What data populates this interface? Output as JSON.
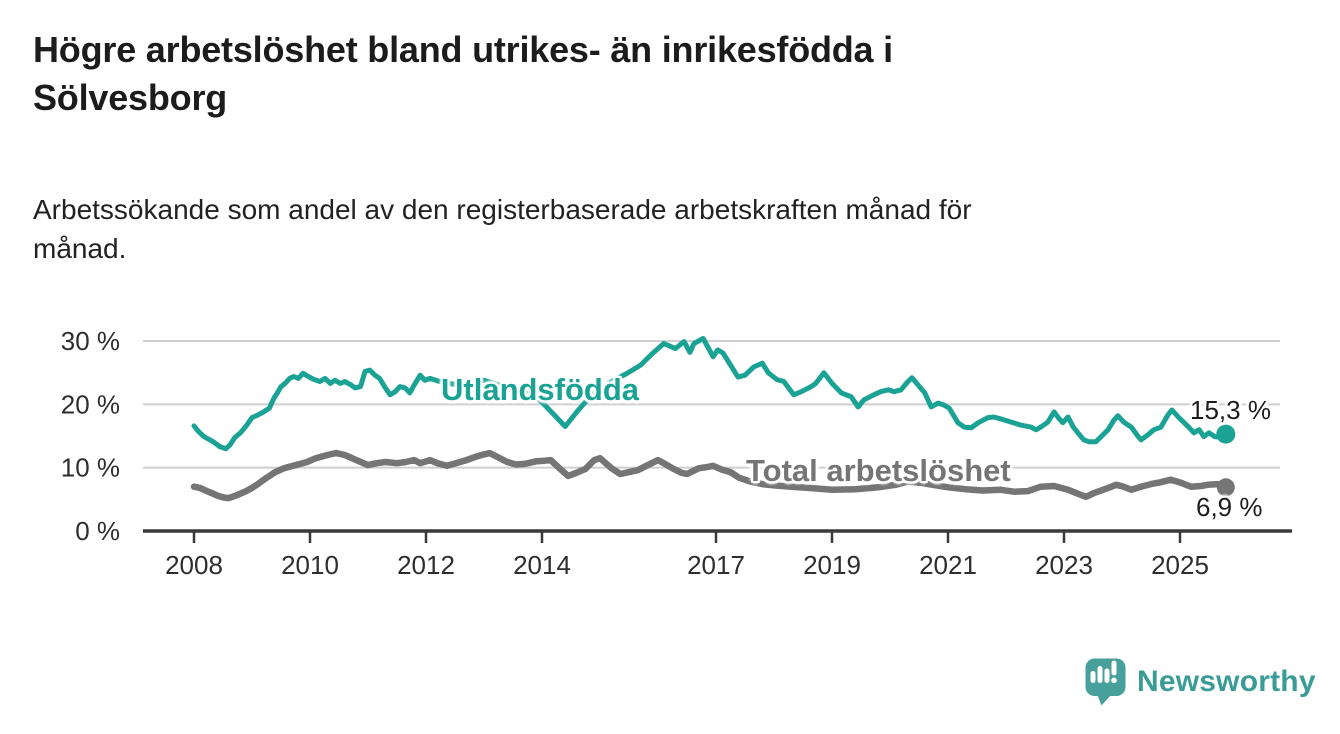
{
  "header": {
    "title_lines": [
      "Högre arbetslöshet bland utrikes- än inrikesfödda i",
      "Sölvesborg"
    ],
    "subtitle_lines": [
      "Arbetssökande som andel av den registerbaserade arbetskraften månad för",
      "månad."
    ]
  },
  "chart_data": {
    "type": "line",
    "unit": "%",
    "grid": "horizontal",
    "legend_position": "inline-labels-on-lines",
    "x_axis": {
      "tick_years": [
        2008,
        2010,
        2012,
        2014,
        2017,
        2019,
        2021,
        2023,
        2025
      ],
      "range_years": [
        2008,
        2025.79
      ]
    },
    "y_axis": {
      "ylim": [
        0,
        32
      ],
      "ticks": [
        {
          "value": 0,
          "label": "0 %"
        },
        {
          "value": 10,
          "label": "10 %"
        },
        {
          "value": 20,
          "label": "20 %"
        },
        {
          "value": 30,
          "label": "30 %"
        }
      ]
    },
    "series": [
      {
        "name": "Utlandsfödda",
        "color": "#1aa295",
        "end_value": 15.3,
        "end_label": "15,3 %",
        "points": [
          [
            2008.0,
            16.6
          ],
          [
            2008.08,
            15.7
          ],
          [
            2008.17,
            14.9
          ],
          [
            2008.33,
            14.1
          ],
          [
            2008.45,
            13.3
          ],
          [
            2008.55,
            13.0
          ],
          [
            2008.62,
            13.6
          ],
          [
            2008.7,
            14.7
          ],
          [
            2008.8,
            15.5
          ],
          [
            2008.9,
            16.6
          ],
          [
            2009.0,
            17.9
          ],
          [
            2009.1,
            18.3
          ],
          [
            2009.2,
            18.8
          ],
          [
            2009.3,
            19.4
          ],
          [
            2009.38,
            21.0
          ],
          [
            2009.45,
            22.0
          ],
          [
            2009.5,
            22.8
          ],
          [
            2009.57,
            23.3
          ],
          [
            2009.65,
            24.1
          ],
          [
            2009.72,
            24.4
          ],
          [
            2009.8,
            24.1
          ],
          [
            2009.88,
            24.9
          ],
          [
            2009.97,
            24.4
          ],
          [
            2010.05,
            24.0
          ],
          [
            2010.17,
            23.6
          ],
          [
            2010.26,
            24.1
          ],
          [
            2010.35,
            23.3
          ],
          [
            2010.43,
            23.8
          ],
          [
            2010.52,
            23.3
          ],
          [
            2010.6,
            23.6
          ],
          [
            2010.7,
            23.1
          ],
          [
            2010.78,
            22.6
          ],
          [
            2010.87,
            22.8
          ],
          [
            2010.95,
            25.2
          ],
          [
            2011.03,
            25.4
          ],
          [
            2011.12,
            24.6
          ],
          [
            2011.2,
            24.1
          ],
          [
            2011.3,
            22.6
          ],
          [
            2011.38,
            21.5
          ],
          [
            2011.47,
            22.0
          ],
          [
            2011.55,
            22.8
          ],
          [
            2011.64,
            22.6
          ],
          [
            2011.72,
            21.8
          ],
          [
            2011.8,
            23.1
          ],
          [
            2011.9,
            24.6
          ],
          [
            2011.98,
            23.8
          ],
          [
            2012.07,
            24.1
          ],
          [
            2012.2,
            23.7
          ],
          [
            2012.4,
            23.3
          ],
          [
            2012.6,
            23.0
          ],
          [
            2012.8,
            23.3
          ],
          [
            2013.0,
            23.8
          ],
          [
            2013.2,
            23.2
          ],
          [
            2013.45,
            22.4
          ],
          [
            2013.7,
            21.9
          ],
          [
            2013.95,
            20.8
          ],
          [
            2014.15,
            18.9
          ],
          [
            2014.4,
            16.5
          ],
          [
            2014.6,
            18.8
          ],
          [
            2014.8,
            20.9
          ],
          [
            2015.0,
            22.4
          ],
          [
            2015.2,
            23.6
          ],
          [
            2015.45,
            24.8
          ],
          [
            2015.7,
            26.2
          ],
          [
            2015.9,
            28.0
          ],
          [
            2016.1,
            29.6
          ],
          [
            2016.3,
            28.8
          ],
          [
            2016.45,
            29.9
          ],
          [
            2016.55,
            28.2
          ],
          [
            2016.62,
            29.6
          ],
          [
            2016.78,
            30.4
          ],
          [
            2016.95,
            27.5
          ],
          [
            2017.03,
            28.6
          ],
          [
            2017.12,
            28.1
          ],
          [
            2017.38,
            24.3
          ],
          [
            2017.5,
            24.6
          ],
          [
            2017.65,
            25.9
          ],
          [
            2017.8,
            26.5
          ],
          [
            2017.9,
            25.0
          ],
          [
            2018.05,
            23.9
          ],
          [
            2018.17,
            23.6
          ],
          [
            2018.34,
            21.5
          ],
          [
            2018.47,
            22.0
          ],
          [
            2018.64,
            22.8
          ],
          [
            2018.72,
            23.3
          ],
          [
            2018.86,
            25.0
          ],
          [
            2019.0,
            23.3
          ],
          [
            2019.16,
            21.8
          ],
          [
            2019.33,
            21.2
          ],
          [
            2019.45,
            19.6
          ],
          [
            2019.55,
            20.7
          ],
          [
            2019.72,
            21.5
          ],
          [
            2019.84,
            22.0
          ],
          [
            2019.97,
            22.3
          ],
          [
            2020.07,
            22.0
          ],
          [
            2020.19,
            22.3
          ],
          [
            2020.31,
            23.6
          ],
          [
            2020.38,
            24.2
          ],
          [
            2020.48,
            23.1
          ],
          [
            2020.6,
            21.8
          ],
          [
            2020.71,
            19.6
          ],
          [
            2020.83,
            20.2
          ],
          [
            2020.93,
            19.9
          ],
          [
            2021.02,
            19.4
          ],
          [
            2021.17,
            17.1
          ],
          [
            2021.28,
            16.4
          ],
          [
            2021.4,
            16.3
          ],
          [
            2021.52,
            17.1
          ],
          [
            2021.69,
            17.9
          ],
          [
            2021.79,
            18.0
          ],
          [
            2021.91,
            17.7
          ],
          [
            2022.09,
            17.2
          ],
          [
            2022.26,
            16.7
          ],
          [
            2022.43,
            16.4
          ],
          [
            2022.52,
            16.0
          ],
          [
            2022.6,
            16.4
          ],
          [
            2022.72,
            17.2
          ],
          [
            2022.83,
            18.8
          ],
          [
            2022.91,
            17.8
          ],
          [
            2022.98,
            17.1
          ],
          [
            2023.07,
            18.0
          ],
          [
            2023.16,
            16.4
          ],
          [
            2023.24,
            15.5
          ],
          [
            2023.34,
            14.4
          ],
          [
            2023.43,
            14.1
          ],
          [
            2023.55,
            14.1
          ],
          [
            2023.64,
            14.9
          ],
          [
            2023.76,
            16.0
          ],
          [
            2023.86,
            17.5
          ],
          [
            2023.93,
            18.2
          ],
          [
            2024.03,
            17.2
          ],
          [
            2024.16,
            16.4
          ],
          [
            2024.28,
            14.9
          ],
          [
            2024.33,
            14.4
          ],
          [
            2024.45,
            15.2
          ],
          [
            2024.55,
            16.0
          ],
          [
            2024.67,
            16.4
          ],
          [
            2024.79,
            18.3
          ],
          [
            2024.86,
            19.1
          ],
          [
            2024.97,
            18.0
          ],
          [
            2025.07,
            17.1
          ],
          [
            2025.16,
            16.3
          ],
          [
            2025.24,
            15.5
          ],
          [
            2025.33,
            16.0
          ],
          [
            2025.41,
            14.9
          ],
          [
            2025.5,
            15.5
          ],
          [
            2025.6,
            14.9
          ],
          [
            2025.7,
            14.8
          ],
          [
            2025.79,
            15.3
          ]
        ]
      },
      {
        "name": "Total arbetslöshet",
        "color": "#757575",
        "end_value": 6.9,
        "end_label": "6,9 %",
        "points": [
          [
            2008.0,
            7.0
          ],
          [
            2008.1,
            6.8
          ],
          [
            2008.2,
            6.4
          ],
          [
            2008.3,
            6.0
          ],
          [
            2008.4,
            5.6
          ],
          [
            2008.5,
            5.3
          ],
          [
            2008.6,
            5.2
          ],
          [
            2008.75,
            5.7
          ],
          [
            2008.9,
            6.3
          ],
          [
            2009.0,
            6.8
          ],
          [
            2009.1,
            7.4
          ],
          [
            2009.25,
            8.4
          ],
          [
            2009.4,
            9.3
          ],
          [
            2009.55,
            9.9
          ],
          [
            2009.75,
            10.4
          ],
          [
            2009.95,
            10.9
          ],
          [
            2010.1,
            11.5
          ],
          [
            2010.3,
            12.0
          ],
          [
            2010.45,
            12.3
          ],
          [
            2010.6,
            12.0
          ],
          [
            2010.8,
            11.2
          ],
          [
            2011.0,
            10.4
          ],
          [
            2011.15,
            10.7
          ],
          [
            2011.3,
            10.9
          ],
          [
            2011.5,
            10.7
          ],
          [
            2011.65,
            10.9
          ],
          [
            2011.8,
            11.2
          ],
          [
            2011.9,
            10.7
          ],
          [
            2012.07,
            11.2
          ],
          [
            2012.2,
            10.7
          ],
          [
            2012.36,
            10.3
          ],
          [
            2012.55,
            10.8
          ],
          [
            2012.7,
            11.2
          ],
          [
            2012.85,
            11.7
          ],
          [
            2013.0,
            12.1
          ],
          [
            2013.1,
            12.3
          ],
          [
            2013.25,
            11.6
          ],
          [
            2013.4,
            10.9
          ],
          [
            2013.55,
            10.5
          ],
          [
            2013.7,
            10.6
          ],
          [
            2013.9,
            11.0
          ],
          [
            2014.05,
            11.1
          ],
          [
            2014.15,
            11.2
          ],
          [
            2014.3,
            9.9
          ],
          [
            2014.45,
            8.7
          ],
          [
            2014.6,
            9.2
          ],
          [
            2014.75,
            9.8
          ],
          [
            2014.9,
            11.2
          ],
          [
            2015.0,
            11.5
          ],
          [
            2015.2,
            9.9
          ],
          [
            2015.35,
            9.0
          ],
          [
            2015.5,
            9.3
          ],
          [
            2015.65,
            9.6
          ],
          [
            2015.8,
            10.3
          ],
          [
            2016.0,
            11.2
          ],
          [
            2016.1,
            10.7
          ],
          [
            2016.25,
            9.9
          ],
          [
            2016.4,
            9.2
          ],
          [
            2016.5,
            9.0
          ],
          [
            2016.7,
            9.9
          ],
          [
            2016.85,
            10.1
          ],
          [
            2016.95,
            10.3
          ],
          [
            2017.1,
            9.7
          ],
          [
            2017.25,
            9.3
          ],
          [
            2017.4,
            8.4
          ],
          [
            2017.6,
            7.8
          ],
          [
            2017.8,
            7.4
          ],
          [
            2018.0,
            7.2
          ],
          [
            2018.3,
            7.0
          ],
          [
            2018.6,
            6.8
          ],
          [
            2019.0,
            6.5
          ],
          [
            2019.4,
            6.6
          ],
          [
            2019.8,
            6.9
          ],
          [
            2020.1,
            7.3
          ],
          [
            2020.3,
            7.8
          ],
          [
            2020.55,
            7.6
          ],
          [
            2020.8,
            7.2
          ],
          [
            2021.0,
            6.9
          ],
          [
            2021.3,
            6.6
          ],
          [
            2021.6,
            6.4
          ],
          [
            2021.91,
            6.5
          ],
          [
            2022.14,
            6.2
          ],
          [
            2022.38,
            6.3
          ],
          [
            2022.6,
            7.0
          ],
          [
            2022.83,
            7.1
          ],
          [
            2023.07,
            6.5
          ],
          [
            2023.29,
            5.7
          ],
          [
            2023.38,
            5.4
          ],
          [
            2023.52,
            6.0
          ],
          [
            2023.76,
            6.8
          ],
          [
            2023.9,
            7.3
          ],
          [
            2024.03,
            7.0
          ],
          [
            2024.16,
            6.5
          ],
          [
            2024.33,
            7.0
          ],
          [
            2024.5,
            7.4
          ],
          [
            2024.67,
            7.7
          ],
          [
            2024.84,
            8.1
          ],
          [
            2025.02,
            7.6
          ],
          [
            2025.19,
            7.0
          ],
          [
            2025.36,
            7.1
          ],
          [
            2025.48,
            7.3
          ],
          [
            2025.65,
            7.4
          ],
          [
            2025.79,
            6.9
          ]
        ]
      }
    ]
  },
  "footer": {
    "brand": "Newsworthy",
    "brand_color": "#3b9c97",
    "icon_color": "#47a09b"
  }
}
